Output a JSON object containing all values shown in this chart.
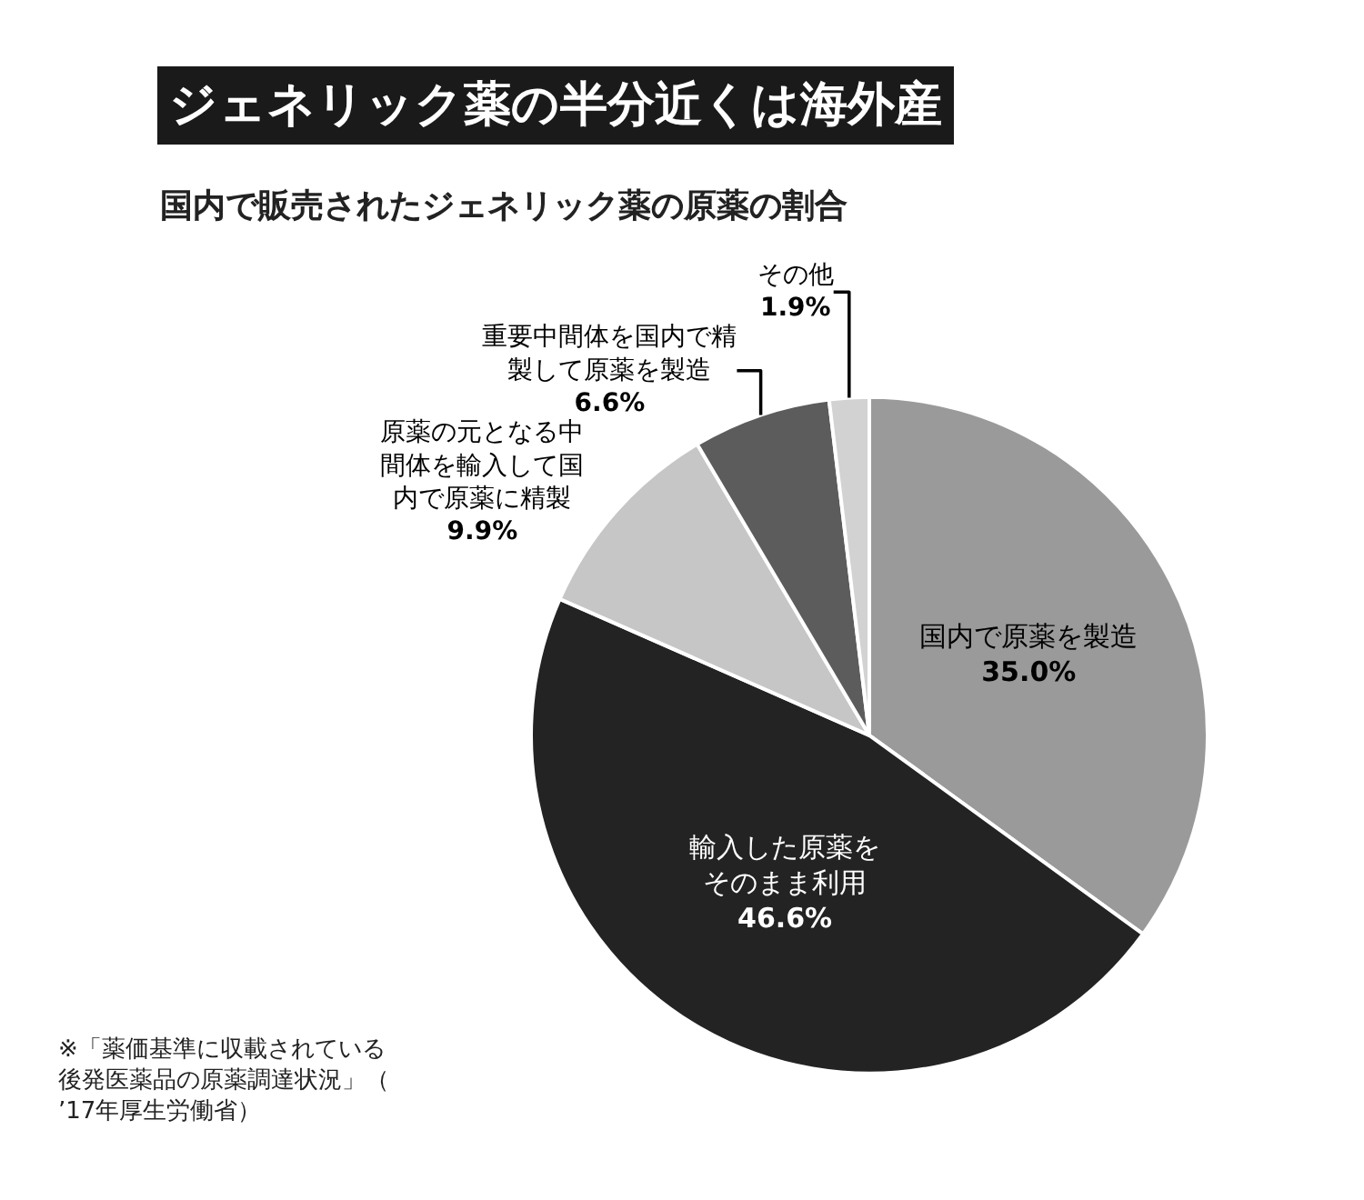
{
  "chart_data": {
    "type": "pie",
    "title": "ジェネリック薬の半分近くは海外産",
    "subtitle": "国内で販売されたジェネリック薬の原薬の割合",
    "categories": [
      "国内で原薬を製造",
      "輸入した原薬をそのまま利用",
      "原薬の元となる中間体を輸入して国内で原薬に精製",
      "重要中間体を国内で精製して原薬を製造",
      "その他"
    ],
    "values": [
      35.0,
      46.6,
      9.9,
      6.6,
      1.9
    ],
    "colors": [
      "#9a9a9a",
      "#232323",
      "#c6c6c6",
      "#5c5c5c",
      "#d2d2d2"
    ],
    "value_labels": [
      "35.0%",
      "46.6%",
      "9.9%",
      "6.6%",
      "1.9%"
    ],
    "legend": false,
    "annotations": [
      "※「薬価基準に収載されている後発医薬品の原薬調達状況」（’17年厚生労働省）"
    ]
  }
}
